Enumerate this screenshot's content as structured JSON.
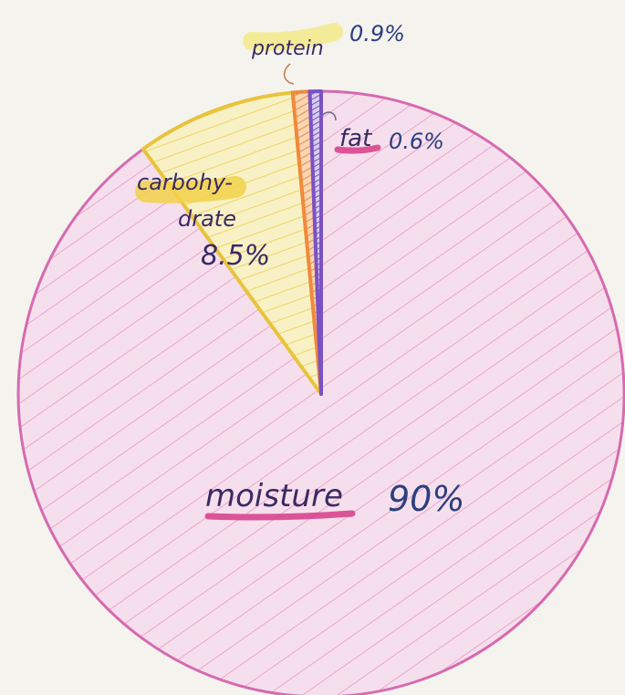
{
  "chart_data": {
    "type": "pie",
    "title": "",
    "slices": [
      {
        "label": "moisture",
        "value": 90,
        "value_label": "90%",
        "color": "#f0b8d8",
        "edge": "#d66ab0",
        "highlight": "#d63c8a"
      },
      {
        "label": "carbohy-drate",
        "label_lines": [
          "carbohy-",
          "drate"
        ],
        "value": 8.5,
        "value_label": "8.5%",
        "color": "#f7ecb0",
        "edge": "#e8c33c",
        "highlight": "#f2d24a"
      },
      {
        "label": "protein",
        "value": 0.9,
        "value_label": "0.9%",
        "color": "#f7c8a0",
        "edge": "#f08a3c",
        "highlight": "#f3e98a"
      },
      {
        "label": "fat",
        "value": 0.6,
        "value_label": "0.6%",
        "color": "#c8b8ea",
        "edge": "#7b52c4",
        "highlight": "#d63c8a"
      }
    ]
  }
}
